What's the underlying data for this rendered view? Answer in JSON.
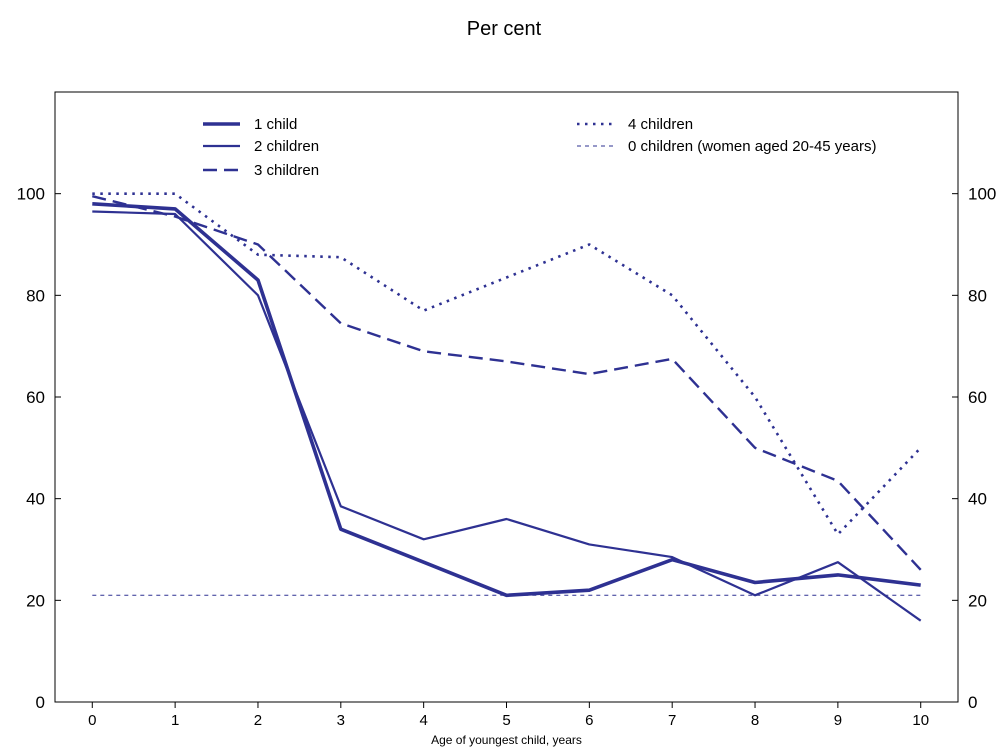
{
  "chart_data": {
    "type": "line",
    "title": "Per cent",
    "xlabel": "Age of youngest child, years",
    "ylabel": "",
    "x": [
      0,
      1,
      2,
      3,
      4,
      5,
      6,
      7,
      8,
      9,
      10
    ],
    "xlim": [
      -0.45,
      10.45
    ],
    "ylim": [
      0,
      120
    ],
    "y_ticks": [
      0,
      20,
      40,
      60,
      80,
      100
    ],
    "secondary_y_axis": true,
    "grid": false,
    "legend_position": "top",
    "series": [
      {
        "name": "1 child",
        "style": "thick-solid",
        "color": "#2E3192",
        "values": [
          98,
          97,
          83,
          34,
          27.5,
          21,
          22,
          28,
          23.5,
          25,
          23
        ]
      },
      {
        "name": "2 children",
        "style": "solid",
        "color": "#2E3192",
        "values": [
          96.5,
          96,
          80,
          38.5,
          32,
          36,
          31,
          28.5,
          21,
          27.5,
          16
        ]
      },
      {
        "name": "3 children",
        "style": "dashed",
        "color": "#2E3192",
        "values": [
          99.5,
          95.5,
          90,
          74.5,
          69,
          67,
          64.5,
          67.5,
          50,
          43.5,
          26
        ]
      },
      {
        "name": "4 children",
        "style": "dotted",
        "color": "#2E3192",
        "values": [
          100,
          100,
          88,
          87.5,
          77,
          83.5,
          90,
          80,
          60,
          33,
          50
        ]
      },
      {
        "name": "0 children (women aged 20-45 years)",
        "style": "fine-dashed",
        "color": "#2E3192",
        "values": [
          21,
          21,
          21,
          21,
          21,
          21,
          21,
          21,
          21,
          21,
          21
        ]
      }
    ]
  }
}
